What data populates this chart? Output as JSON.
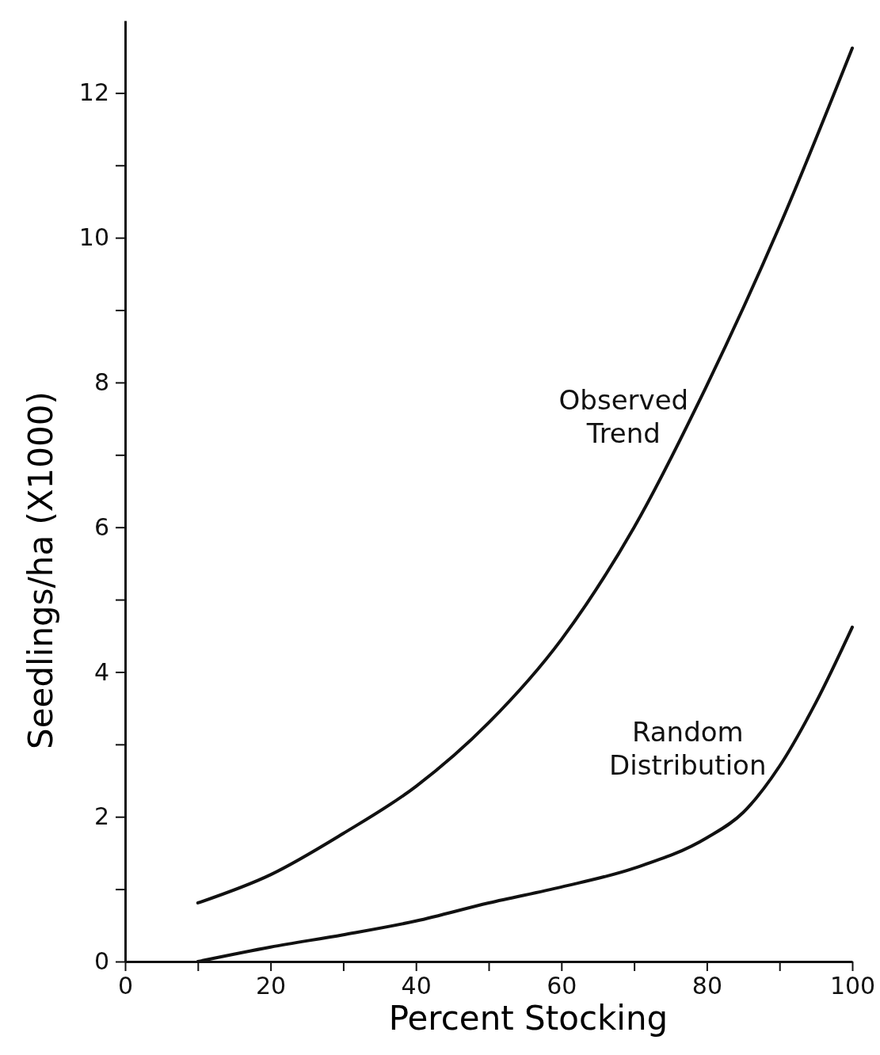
{
  "chart_data": {
    "type": "line",
    "xlabel": "Percent Stocking",
    "ylabel": "Seedlings/ha (X1000)",
    "xlim": [
      0,
      100
    ],
    "ylim": [
      0,
      13
    ],
    "xticks": [
      0,
      {
        "value": 10,
        "label": null
      },
      20,
      {
        "value": 30,
        "label": null
      },
      40,
      {
        "value": 50,
        "label": null
      },
      60,
      {
        "value": 70,
        "label": null
      },
      80,
      {
        "value": 90,
        "label": null
      },
      100
    ],
    "yticks": [
      0,
      {
        "value": 1,
        "label": null
      },
      2,
      {
        "value": 3,
        "label": null
      },
      4,
      {
        "value": 5,
        "label": null
      },
      6,
      {
        "value": 7,
        "label": null
      },
      8,
      {
        "value": 9,
        "label": null
      },
      10,
      {
        "value": 11,
        "label": null
      },
      12
    ],
    "grid": false,
    "legend": false,
    "marker": "none",
    "line_style": "solid",
    "series": [
      {
        "name": "Observed Trend",
        "color": "#111111",
        "x": [
          10,
          20,
          30,
          40,
          50,
          60,
          70,
          80,
          90,
          100
        ],
        "values": [
          0.81,
          1.2,
          1.77,
          2.42,
          3.3,
          4.45,
          6.0,
          7.96,
          10.16,
          12.62
        ]
      },
      {
        "name": "Random Distribution",
        "color": "#111111",
        "x": [
          10,
          20,
          30,
          40,
          50,
          60,
          70,
          80,
          85,
          90,
          95,
          100
        ],
        "values": [
          0,
          0.2,
          0.37,
          0.56,
          0.81,
          1.03,
          1.29,
          1.71,
          2.06,
          2.7,
          3.58,
          4.62
        ]
      }
    ]
  }
}
